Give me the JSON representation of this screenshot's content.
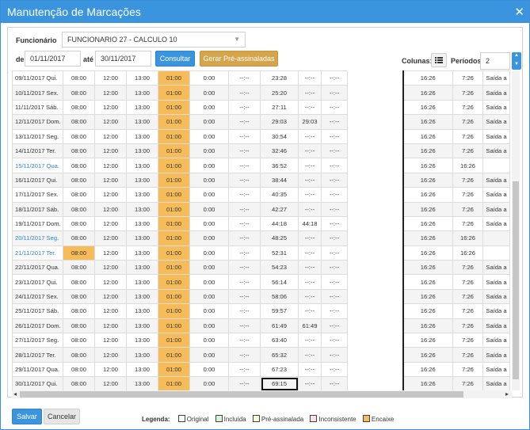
{
  "window": {
    "title": "Manutenção de Marcações",
    "close_glyph": "✕"
  },
  "filters": {
    "funcionario_label": "Funcionário",
    "funcionario_value": "FUNCIONARIO 27 - CALCULO 10",
    "de_label": "de",
    "date_from": "01/11/2017",
    "ate_label": "até",
    "date_to": "30/11/2017",
    "consultar_label": "Consultar",
    "gerar_label": "Gerar Pré-assinaladas",
    "colunas_label": "Colunas:",
    "periodos_label": "Períodos:",
    "periodos_value": "2"
  },
  "colors": {
    "accent": "#3a95de",
    "encaixe": "#f7bc5a",
    "pre_assinalada": "#fffbd6",
    "incluida": "#d6f5d6",
    "inconsistente": "#fce1e1",
    "link": "#2f85d0"
  },
  "rows": [
    {
      "d": "09/11/2017 Qui.",
      "c": [
        "08:00",
        "12:00",
        "13:00",
        "01:00",
        "0:00",
        "--:--",
        "23:28",
        "--:--",
        "--:--",
        "16:26",
        "7:26",
        "Saída a"
      ],
      "enc0": false
    },
    {
      "d": "10/11/2017 Sex.",
      "c": [
        "08:00",
        "12:00",
        "13:00",
        "01:00",
        "0:00",
        "--:--",
        "25:20",
        "--:--",
        "--:--",
        "16:26",
        "7:26",
        "Saída a"
      ],
      "enc0": false
    },
    {
      "d": "11/11/2017 Sáb.",
      "c": [
        "08:00",
        "12:00",
        "13:00",
        "01:00",
        "0:00",
        "--:--",
        "27:11",
        "--:--",
        "--:--",
        "16:26",
        "7:26",
        "Saída a"
      ],
      "enc0": false
    },
    {
      "d": "12/11/2017 Dom.",
      "c": [
        "08:00",
        "12:00",
        "13:00",
        "01:00",
        "0:00",
        "--:--",
        "29:03",
        "29:03",
        "--:--",
        "16:26",
        "7:26",
        "Saída a"
      ],
      "enc0": false
    },
    {
      "d": "13/11/2017 Seg.",
      "c": [
        "08:00",
        "12:00",
        "13:00",
        "01:00",
        "0:00",
        "--:--",
        "30:54",
        "--:--",
        "--:--",
        "16:26",
        "7:26",
        "Saída a"
      ],
      "enc0": false
    },
    {
      "d": "14/11/2017 Ter.",
      "c": [
        "08:00",
        "12:00",
        "13:00",
        "01:00",
        "0:00",
        "--:--",
        "32:46",
        "--:--",
        "--:--",
        "16:26",
        "7:26",
        "Saída a"
      ],
      "enc0": false
    },
    {
      "d": "15/11/2017 Qua.",
      "c": [
        "08:00",
        "12:00",
        "13:00",
        "01:00",
        "0:00",
        "--:--",
        "36:52",
        "--:--",
        "--:--",
        "16:26",
        "16:26",
        ""
      ],
      "enc0": false,
      "blue": true
    },
    {
      "d": "16/11/2017 Qui.",
      "c": [
        "08:00",
        "12:00",
        "13:00",
        "01:00",
        "0:00",
        "--:--",
        "38:44",
        "--:--",
        "--:--",
        "16:26",
        "7:26",
        "Saída a"
      ],
      "enc0": false
    },
    {
      "d": "17/11/2017 Sex.",
      "c": [
        "08:00",
        "12:00",
        "13:00",
        "01:00",
        "0:00",
        "--:--",
        "40:35",
        "--:--",
        "--:--",
        "16:26",
        "7:26",
        "Saída a"
      ],
      "enc0": false
    },
    {
      "d": "18/11/2017 Sáb.",
      "c": [
        "08:00",
        "12:00",
        "13:00",
        "01:00",
        "0:00",
        "--:--",
        "42:27",
        "--:--",
        "--:--",
        "16:26",
        "7:26",
        "Saída a"
      ],
      "enc0": false
    },
    {
      "d": "19/11/2017 Dom.",
      "c": [
        "08:00",
        "12:00",
        "13:00",
        "01:00",
        "0:00",
        "--:--",
        "44:18",
        "44:18",
        "--:--",
        "16:26",
        "7:26",
        "Saída a"
      ],
      "enc0": false
    },
    {
      "d": "20/11/2017 Seg.",
      "c": [
        "08:00",
        "12:00",
        "13:00",
        "01:00",
        "0:00",
        "--:--",
        "48:25",
        "--:--",
        "--:--",
        "16:26",
        "16:26",
        ""
      ],
      "enc0": false,
      "blue": true
    },
    {
      "d": "21/11/2017 Ter.",
      "c": [
        "08:00",
        "12:00",
        "13:00",
        "01:00",
        "0:00",
        "--:--",
        "52:31",
        "--:--",
        "--:--",
        "16:26",
        "16:26",
        ""
      ],
      "enc0": true,
      "blue": true
    },
    {
      "d": "22/11/2017 Qua.",
      "c": [
        "08:00",
        "12:00",
        "13:00",
        "01:00",
        "0:00",
        "--:--",
        "54:23",
        "--:--",
        "--:--",
        "16:26",
        "7:26",
        "Saída a"
      ],
      "enc0": false
    },
    {
      "d": "23/11/2017 Qui.",
      "c": [
        "08:00",
        "12:00",
        "13:00",
        "01:00",
        "0:00",
        "--:--",
        "56:14",
        "--:--",
        "--:--",
        "16:26",
        "7:26",
        "Saída a"
      ],
      "enc0": false
    },
    {
      "d": "24/11/2017 Sex.",
      "c": [
        "08:00",
        "12:00",
        "13:00",
        "01:00",
        "0:00",
        "--:--",
        "58:06",
        "--:--",
        "--:--",
        "16:26",
        "7:26",
        "Saída a"
      ],
      "enc0": false
    },
    {
      "d": "25/11/2017 Sáb.",
      "c": [
        "08:00",
        "12:00",
        "13:00",
        "01:00",
        "0:00",
        "--:--",
        "59:57",
        "--:--",
        "--:--",
        "16:26",
        "7:26",
        "Saída a"
      ],
      "enc0": false
    },
    {
      "d": "26/11/2017 Dom.",
      "c": [
        "08:00",
        "12:00",
        "13:00",
        "01:00",
        "0:00",
        "--:--",
        "61:49",
        "61:49",
        "--:--",
        "16:26",
        "7:26",
        "Saída a"
      ],
      "enc0": false
    },
    {
      "d": "27/11/2017 Seg.",
      "c": [
        "08:00",
        "12:00",
        "13:00",
        "01:00",
        "0:00",
        "--:--",
        "63:40",
        "--:--",
        "--:--",
        "16:26",
        "7:26",
        "Saída a"
      ],
      "enc0": false
    },
    {
      "d": "28/11/2017 Ter.",
      "c": [
        "08:00",
        "12:00",
        "13:00",
        "01:00",
        "0:00",
        "--:--",
        "65:32",
        "--:--",
        "--:--",
        "16:26",
        "7:26",
        "Saída a"
      ],
      "enc0": false
    },
    {
      "d": "29/11/2017 Qua.",
      "c": [
        "08:00",
        "12:00",
        "13:00",
        "01:00",
        "0:00",
        "--:--",
        "67:23",
        "--:--",
        "--:--",
        "16:26",
        "7:26",
        "Saída a"
      ],
      "enc0": false
    },
    {
      "d": "30/11/2017 Qui.",
      "c": [
        "08:00",
        "12:00",
        "13:00",
        "01:00",
        "0:00",
        "--:--",
        "69:15",
        "--:--",
        "--:--",
        "16:26",
        "7:26",
        "Saída a"
      ],
      "enc0": false,
      "sel": true
    }
  ],
  "legend": {
    "title": "Legenda:",
    "items": [
      "Original",
      "Incluída",
      "Pré-assinalada",
      "Inconsistente",
      "Encaixe"
    ]
  },
  "footer": {
    "save_label": "Salvar",
    "cancel_label": "Cancelar"
  },
  "icons": {
    "list": "list-icon",
    "spin_up": "chevron-up-icon",
    "spin_down": "chevron-down-icon"
  }
}
